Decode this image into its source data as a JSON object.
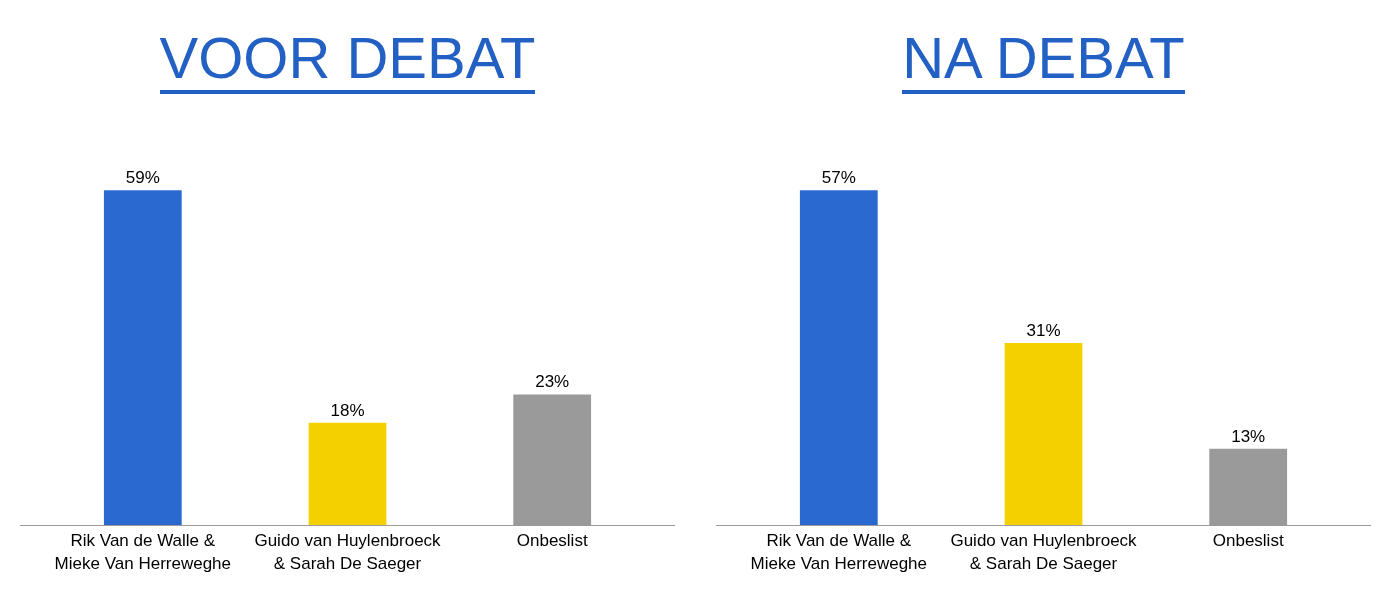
{
  "chart_data": [
    {
      "type": "bar",
      "title": "VOOR DEBAT",
      "categories": [
        "Rik Van de Walle & Mieke Van Herreweghe",
        "Guido van Huylenbroeck & Sarah De Saeger",
        "Onbeslist"
      ],
      "values": [
        59,
        18,
        23
      ],
      "value_labels": [
        "59%",
        "18%",
        "23%"
      ],
      "colors": [
        "#2a6ad0",
        "#f5d000",
        "#9a9a9a"
      ],
      "grid": false,
      "legend": false
    },
    {
      "type": "bar",
      "title": "NA DEBAT",
      "categories": [
        "Rik Van de Walle & Mieke Van Herreweghe",
        "Guido van Huylenbroeck & Sarah De Saeger",
        "Onbeslist"
      ],
      "values": [
        57,
        31,
        13
      ],
      "value_labels": [
        "57%",
        "31%",
        "13%"
      ],
      "colors": [
        "#2a6ad0",
        "#f5d000",
        "#9a9a9a"
      ],
      "grid": false,
      "legend": false
    }
  ]
}
